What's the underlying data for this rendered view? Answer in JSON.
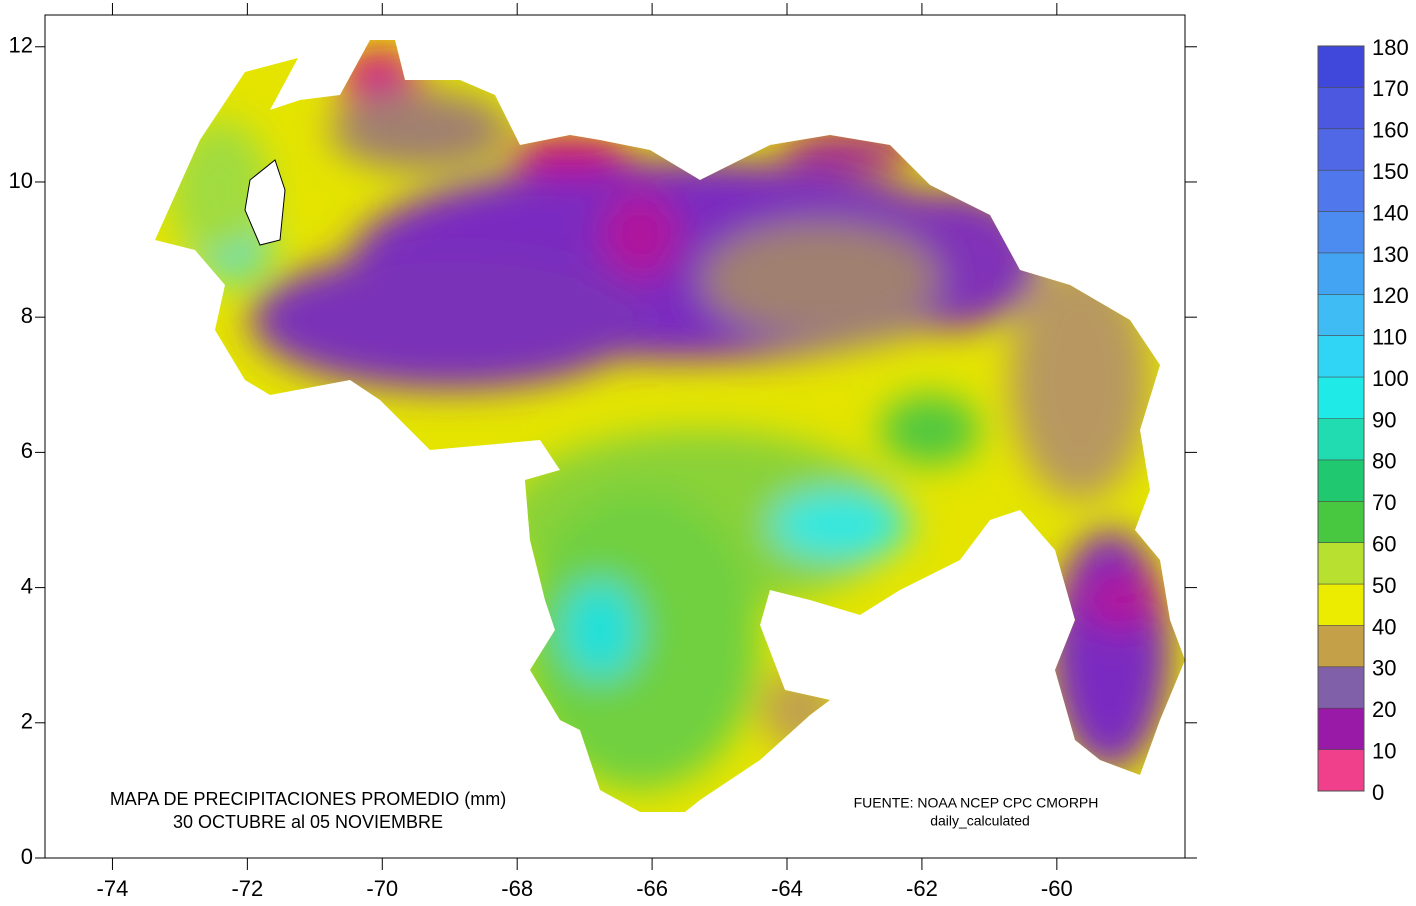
{
  "chart_data": {
    "type": "map",
    "title": "MAPA DE PRECIPITACIONES PROMEDIO (mm)",
    "subtitle": "30 OCTUBRE al 05  NOVIEMBRE",
    "source": "FUENTE: NOAA NCEP CPC CMORPH",
    "source_note": "daily_calculated",
    "xlim": [
      -75,
      -58.1
    ],
    "ylim": [
      0,
      12.47
    ],
    "xticks": [
      -74,
      -72,
      -70,
      -68,
      -66,
      -64,
      -62,
      -60
    ],
    "yticks": [
      0,
      2,
      4,
      6,
      8,
      10,
      12
    ],
    "colorbar": {
      "lim": [
        0,
        180
      ],
      "ticks": [
        0,
        10,
        20,
        30,
        40,
        50,
        60,
        70,
        80,
        90,
        100,
        110,
        120,
        130,
        140,
        150,
        160,
        170,
        180
      ],
      "colors": [
        "#f0408c",
        "#9a1aa8",
        "#8060a8",
        "#c4a048",
        "#ecec00",
        "#b8e030",
        "#48c840",
        "#20c870",
        "#20dcb0",
        "#20eae8",
        "#30d4f4",
        "#40bcf4",
        "#44a4f4",
        "#4c8cf0",
        "#5078ec",
        "#5068e6",
        "#4c58e0",
        "#4048dc"
      ]
    }
  }
}
